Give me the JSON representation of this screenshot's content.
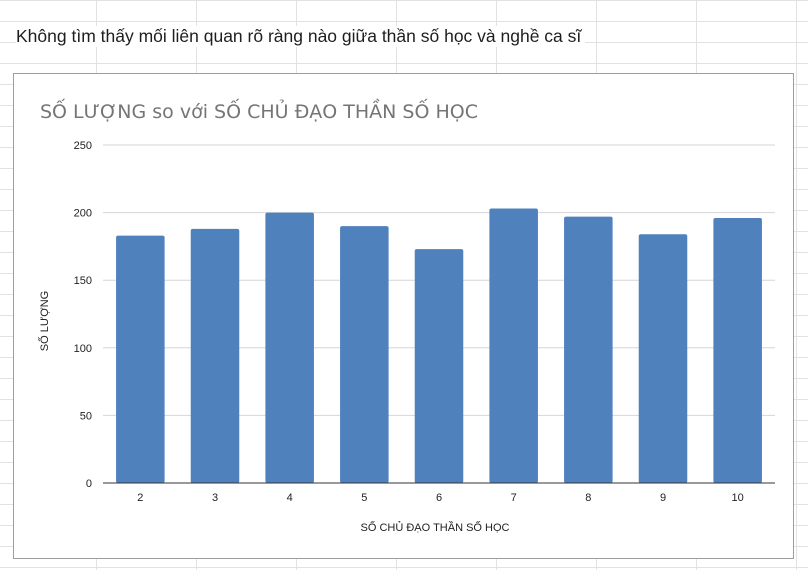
{
  "sheet": {
    "cell_text": "Không tìm thấy mối liên quan rõ ràng nào giữa thần số học và nghề ca sĩ"
  },
  "chart_data": {
    "type": "bar",
    "title": "SỐ LƯỢNG so với SỐ CHỦ ĐẠO THẦN SỐ HỌC",
    "xlabel": "SỐ CHỦ ĐẠO THẦN SỐ HỌC",
    "ylabel": "SỐ LƯỢNG",
    "categories": [
      "2",
      "3",
      "4",
      "5",
      "6",
      "7",
      "8",
      "9",
      "10"
    ],
    "values": [
      183,
      188,
      200,
      190,
      173,
      203,
      197,
      184,
      196
    ],
    "ylim": [
      0,
      250
    ],
    "yticks": [
      0,
      50,
      100,
      150,
      200,
      250
    ],
    "bar_color": "#4f81bd",
    "grid": true,
    "legend": "none"
  }
}
